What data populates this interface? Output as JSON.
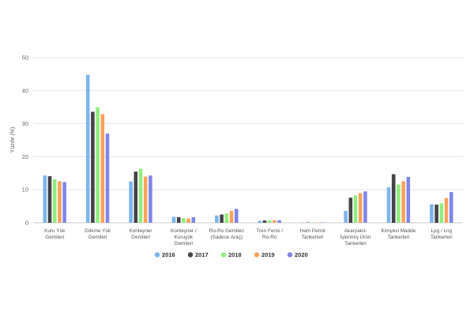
{
  "chart_data": {
    "type": "bar",
    "ylabel": "Yüzde (%)",
    "ylim": [
      0,
      50
    ],
    "yticks": [
      0,
      10,
      20,
      30,
      40,
      50
    ],
    "grid": true,
    "legend_position": "bottom-center",
    "categories": [
      [
        "Kuru Yük",
        "Gemileri"
      ],
      [
        "Dökme Yük",
        "Gemileri"
      ],
      [
        "Konteyner",
        "Gemileri"
      ],
      [
        "Konteyner /",
        "Kuruyük",
        "Gemileri"
      ],
      [
        "Ro-Ro Gemileri",
        "(Sadece Araç)"
      ],
      [
        "Tren Ferisi /",
        "Ro-Ro"
      ],
      [
        "Ham Petrol",
        "Tankerleri"
      ],
      [
        "Akaryakıt-",
        "İşlenmiş Ürün",
        "Tankerleri"
      ],
      [
        "Kimyevi Madde",
        "Tankerleri"
      ],
      [
        "Lpg / Lng",
        "Tankerleri"
      ]
    ],
    "series": [
      {
        "name": "2016",
        "color": "#7cb5ec",
        "values": [
          14.3,
          44.8,
          12.5,
          1.8,
          2.2,
          0.6,
          0.1,
          3.6,
          10.7,
          5.6
        ]
      },
      {
        "name": "2017",
        "color": "#434348",
        "values": [
          14.1,
          33.6,
          15.5,
          1.7,
          2.5,
          0.7,
          0.1,
          7.6,
          14.7,
          5.5
        ]
      },
      {
        "name": "2018",
        "color": "#90ed7d",
        "values": [
          13.1,
          35.0,
          16.3,
          1.4,
          2.8,
          0.7,
          0.1,
          8.3,
          11.6,
          5.9
        ]
      },
      {
        "name": "2019",
        "color": "#f7a35c",
        "values": [
          12.6,
          32.9,
          14.0,
          1.3,
          3.6,
          0.8,
          0.1,
          9.0,
          12.6,
          7.5
        ]
      },
      {
        "name": "2020",
        "color": "#8085e9",
        "values": [
          12.3,
          27.0,
          14.3,
          1.7,
          4.2,
          0.8,
          0.1,
          9.5,
          13.9,
          9.3
        ]
      }
    ]
  }
}
